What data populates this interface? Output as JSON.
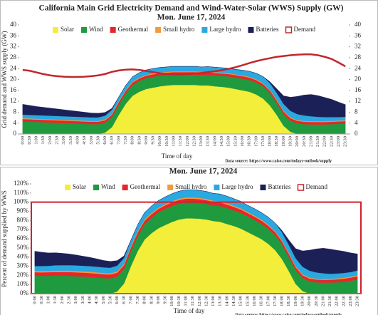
{
  "chart_data": [
    {
      "type": "area",
      "title": "California Main Grid Electricity Demand and Wind-Water-Solar (WWS) Supply (GW)",
      "subtitle": "Mon. June 17, 2024",
      "y_label": "Grid demand and WWS supply (GW)",
      "x_label": "Time of day",
      "source": "Data source: https://www.caiso.com/todays-outlook/supply",
      "categories": [
        "0:00",
        "0:30",
        "1:00",
        "1:30",
        "2:00",
        "2:30",
        "3:00",
        "3:30",
        "4:00",
        "4:30",
        "5:00",
        "5:30",
        "6:00",
        "6:30",
        "7:00",
        "7:30",
        "8:00",
        "8:30",
        "9:00",
        "9:30",
        "10:00",
        "10:30",
        "11:00",
        "11:30",
        "12:00",
        "12:30",
        "13:00",
        "13:30",
        "14:00",
        "14:30",
        "15:00",
        "15:30",
        "16:00",
        "16:30",
        "17:00",
        "17:30",
        "18:00",
        "18:30",
        "19:00",
        "19:30",
        "20:00",
        "20:30",
        "21:00",
        "21:30",
        "22:00",
        "22:30",
        "23:00",
        "23:30"
      ],
      "ylim": [
        0,
        40
      ],
      "yticks": [
        0,
        4,
        8,
        12,
        16,
        20,
        24,
        28,
        32,
        36,
        40
      ],
      "y2lim": [
        0,
        40
      ],
      "y2ticks": [
        0,
        4,
        8,
        12,
        16,
        20,
        24,
        28,
        32,
        36,
        40
      ],
      "series": [
        {
          "name": "Solar",
          "color": "#f2ee3a",
          "kind": "area",
          "values": [
            0,
            0,
            0,
            0,
            0,
            0,
            0,
            0,
            0,
            0,
            0,
            0,
            0.5,
            2.5,
            7,
            11,
            14,
            15.5,
            16.5,
            17,
            17.5,
            17.8,
            18,
            18,
            18,
            18,
            17.8,
            17.8,
            17.5,
            17.3,
            17,
            16.5,
            16,
            15.5,
            14.5,
            13,
            10.5,
            7,
            3,
            0.8,
            0,
            0,
            0,
            0,
            0,
            0,
            0,
            0
          ]
        },
        {
          "name": "Wind",
          "color": "#1f9a3e",
          "kind": "area",
          "values": [
            4.6,
            4.5,
            4.4,
            4.3,
            4.2,
            4.1,
            4,
            3.9,
            3.8,
            3.7,
            3.6,
            3.6,
            3.6,
            3.7,
            3.8,
            3.9,
            4,
            4,
            4,
            4,
            3.9,
            3.8,
            3.8,
            3.8,
            3.8,
            3.8,
            3.8,
            3.9,
            4,
            4,
            4.1,
            4.2,
            4.3,
            4.3,
            4.4,
            4.5,
            4.5,
            4.4,
            4.3,
            4.1,
            3.9,
            3.6,
            3.5,
            3.5,
            3.5,
            3.6,
            3.7,
            3.8
          ]
        },
        {
          "name": "Geothermal",
          "color": "#e6262b",
          "kind": "area",
          "values": [
            0.9,
            0.9,
            0.9,
            0.9,
            0.9,
            0.9,
            0.9,
            0.9,
            0.9,
            0.9,
            0.9,
            0.9,
            0.9,
            0.9,
            0.9,
            0.9,
            0.9,
            0.9,
            0.9,
            0.9,
            0.9,
            0.9,
            0.9,
            0.9,
            0.9,
            0.9,
            0.9,
            0.9,
            0.9,
            0.9,
            0.9,
            0.9,
            0.9,
            0.9,
            0.9,
            0.9,
            0.9,
            0.9,
            0.9,
            0.9,
            0.9,
            0.9,
            0.9,
            0.9,
            0.9,
            0.9,
            0.9,
            0.9
          ]
        },
        {
          "name": "Small hydro",
          "color": "#f39a3b",
          "kind": "area",
          "values": [
            0.3,
            0.3,
            0.3,
            0.3,
            0.3,
            0.3,
            0.3,
            0.3,
            0.3,
            0.3,
            0.3,
            0.3,
            0.3,
            0.3,
            0.3,
            0.3,
            0.3,
            0.3,
            0.3,
            0.3,
            0.3,
            0.3,
            0.3,
            0.3,
            0.3,
            0.3,
            0.3,
            0.3,
            0.3,
            0.3,
            0.3,
            0.3,
            0.3,
            0.3,
            0.3,
            0.3,
            0.3,
            0.3,
            0.3,
            0.3,
            0.3,
            0.3,
            0.3,
            0.3,
            0.3,
            0.3,
            0.3,
            0.3
          ]
        },
        {
          "name": "Large hydro",
          "color": "#2aa8e0",
          "kind": "area",
          "values": [
            1.3,
            1.3,
            1.3,
            1.3,
            1.3,
            1.3,
            1.3,
            1.3,
            1.3,
            1.3,
            1.3,
            1.3,
            1.4,
            1.5,
            1.6,
            1.7,
            1.8,
            1.8,
            1.8,
            1.8,
            1.8,
            1.8,
            1.8,
            1.8,
            1.8,
            1.8,
            1.8,
            1.8,
            1.8,
            1.8,
            1.8,
            1.8,
            1.9,
            2,
            2.2,
            2.4,
            2.5,
            2.5,
            2.5,
            2.4,
            2.2,
            2,
            1.8,
            1.6,
            1.5,
            1.4,
            1.3,
            1.3
          ]
        },
        {
          "name": "Batteries",
          "color": "#1b2157",
          "kind": "area",
          "values": [
            3.8,
            3.5,
            3.2,
            3,
            2.8,
            2.6,
            2.4,
            2.2,
            2,
            1.8,
            1.6,
            1.5,
            1.2,
            0.5,
            0,
            0,
            0,
            0,
            0,
            0,
            0,
            0,
            0,
            0,
            0,
            0,
            0,
            0,
            0,
            0,
            0,
            0,
            0,
            0,
            0,
            0,
            0.5,
            1.5,
            3,
            5,
            6.5,
            7.5,
            8,
            7.8,
            7.2,
            6.5,
            5.5,
            4.5
          ]
        },
        {
          "name": "Demand",
          "color": "#c0272d",
          "kind": "line",
          "values": [
            23.5,
            23.2,
            22.6,
            22,
            21.5,
            21.2,
            21,
            20.9,
            20.9,
            21,
            21.2,
            21.5,
            22,
            22.8,
            23.3,
            23.6,
            23.7,
            23.5,
            23.1,
            22.7,
            22.3,
            22,
            21.9,
            21.9,
            22,
            22.2,
            22.4,
            22.7,
            23,
            23.4,
            23.9,
            24.5,
            25.2,
            26,
            26.7,
            27.3,
            27.8,
            28.3,
            28.6,
            28.9,
            29.1,
            29.2,
            29.2,
            28.9,
            28.3,
            27.5,
            26.2,
            24.8
          ]
        }
      ]
    },
    {
      "type": "area",
      "subtitle": "Mon. June 17, 2024",
      "y_label": "Percent of demand supplied by WWS",
      "x_label": "Time of day",
      "source": "Data source: https://www.caiso.com/todays-outlook/supply",
      "categories": [
        "0:00",
        "0:30",
        "1:00",
        "1:30",
        "2:00",
        "2:30",
        "3:00",
        "3:30",
        "4:00",
        "4:30",
        "5:00",
        "5:30",
        "6:00",
        "6:30",
        "7:00",
        "7:30",
        "8:00",
        "8:30",
        "9:00",
        "9:30",
        "10:00",
        "10:30",
        "11:00",
        "11:30",
        "12:00",
        "12:30",
        "13:00",
        "13:30",
        "14:00",
        "14:30",
        "15:00",
        "15:30",
        "16:00",
        "16:30",
        "17:00",
        "17:30",
        "18:00",
        "18:30",
        "19:00",
        "19:30",
        "20:00",
        "20:30",
        "21:00",
        "21:30",
        "22:00",
        "22:30",
        "23:00",
        "23:30"
      ],
      "ylim": [
        0,
        120
      ],
      "yticks": [
        {
          "value": 0,
          "label": "0%"
        },
        {
          "value": 10,
          "label": "10%"
        },
        {
          "value": 20,
          "label": "20%"
        },
        {
          "value": 30,
          "label": "30%"
        },
        {
          "value": 40,
          "label": "40%"
        },
        {
          "value": 50,
          "label": "50%"
        },
        {
          "value": 60,
          "label": "60%"
        },
        {
          "value": 70,
          "label": "70%"
        },
        {
          "value": 80,
          "label": "80%"
        },
        {
          "value": 90,
          "label": "90%"
        },
        {
          "value": 100,
          "label": "100%"
        },
        {
          "value": 110,
          "label": "110%"
        },
        {
          "value": 120,
          "label": "120%"
        }
      ],
      "series": [
        {
          "name": "Solar",
          "color": "#f2ee3a",
          "kind": "area",
          "values": [
            0,
            0,
            0,
            0,
            0,
            0,
            0,
            0,
            0,
            0,
            0,
            0,
            2.3,
            11,
            30,
            46.6,
            59.1,
            66,
            71.4,
            75,
            78.4,
            81,
            82.3,
            82.3,
            81.9,
            81,
            79.4,
            78.5,
            76.1,
            73.9,
            71.1,
            67.3,
            63.5,
            59.7,
            54.4,
            47.6,
            37.8,
            24.7,
            10.5,
            2.8,
            0,
            0,
            0,
            0,
            0,
            0,
            0,
            0
          ]
        },
        {
          "name": "Wind",
          "color": "#1f9a3e",
          "kind": "area",
          "values": [
            19.6,
            19.4,
            19.4,
            19.6,
            19.5,
            19.4,
            19,
            18.6,
            18.2,
            17.6,
            17,
            16.7,
            16.4,
            16.2,
            16.3,
            16.5,
            16.9,
            17,
            17.3,
            17.6,
            17.5,
            17.3,
            17.4,
            17.4,
            17.3,
            17.1,
            16.9,
            17.2,
            17.4,
            17.1,
            17.1,
            17.1,
            17.1,
            16.6,
            16.5,
            16.5,
            16.2,
            15.5,
            15.1,
            14.2,
            13.4,
            12.3,
            12,
            12.1,
            12.4,
            13.1,
            14.1,
            15.3
          ]
        },
        {
          "name": "Geothermal",
          "color": "#e6262b",
          "kind": "area",
          "values": [
            3.8,
            3.9,
            4,
            4.1,
            4.2,
            4.2,
            4.3,
            4.3,
            4.3,
            4.3,
            4.2,
            4.2,
            4.1,
            4,
            3.9,
            3.8,
            3.8,
            3.8,
            3.9,
            4,
            4,
            4.1,
            4.1,
            4.1,
            4.1,
            4.1,
            4,
            4,
            3.9,
            3.8,
            3.8,
            3.7,
            3.6,
            3.5,
            3.4,
            3.3,
            3.2,
            3.2,
            3.2,
            3.1,
            3.1,
            3.1,
            3.1,
            3.1,
            3.2,
            3.3,
            3.4,
            3.6
          ]
        },
        {
          "name": "Small hydro",
          "color": "#f39a3b",
          "kind": "area",
          "values": [
            1.3,
            1.3,
            1.3,
            1.4,
            1.4,
            1.4,
            1.4,
            1.4,
            1.4,
            1.4,
            1.4,
            1.4,
            1.4,
            1.3,
            1.3,
            1.3,
            1.3,
            1.3,
            1.3,
            1.3,
            1.3,
            1.4,
            1.4,
            1.4,
            1.4,
            1.4,
            1.3,
            1.3,
            1.3,
            1.3,
            1.3,
            1.2,
            1.2,
            1.2,
            1.1,
            1.1,
            1.1,
            1.1,
            1.1,
            1,
            1,
            1,
            1,
            1,
            1.1,
            1.1,
            1.1,
            1.2
          ]
        },
        {
          "name": "Large hydro",
          "color": "#2aa8e0",
          "kind": "area",
          "values": [
            5.5,
            5.6,
            5.7,
            5.9,
            6,
            6.1,
            6.2,
            6.2,
            6.2,
            6.2,
            6.1,
            6,
            6.4,
            6.6,
            6.9,
            7.2,
            7.6,
            7.7,
            7.8,
            7.9,
            8.1,
            8.2,
            8.2,
            8.2,
            8.2,
            8.1,
            8,
            7.9,
            7.8,
            7.7,
            7.5,
            7.3,
            7.5,
            7.7,
            8.3,
            8.8,
            9,
            8.8,
            8.8,
            8.3,
            7.6,
            6.8,
            6.2,
            5.5,
            5.3,
            5.1,
            5,
            5.2
          ]
        },
        {
          "name": "Batteries",
          "color": "#1b2157",
          "kind": "area",
          "values": [
            16.2,
            15.1,
            14.1,
            13.7,
            13,
            12.3,
            11.4,
            10.5,
            9.6,
            8.6,
            7.6,
            7,
            5.5,
            2.2,
            0,
            0,
            0,
            0,
            0,
            0,
            0,
            0,
            0,
            0,
            0,
            0,
            0,
            0,
            0,
            0,
            0,
            0,
            0,
            0,
            0,
            0,
            1.8,
            5.3,
            10.5,
            17.3,
            22.4,
            25.7,
            27.4,
            27,
            25.4,
            23.7,
            21,
            18.1
          ]
        },
        {
          "name": "Demand",
          "color": "#d0222a",
          "kind": "box",
          "values": [
            100,
            100,
            100,
            100,
            100,
            100,
            100,
            100,
            100,
            100,
            100,
            100,
            100,
            100,
            100,
            100,
            100,
            100,
            100,
            100,
            100,
            100,
            100,
            100,
            100,
            100,
            100,
            100,
            100,
            100,
            100,
            100,
            100,
            100,
            100,
            100,
            100,
            100,
            100,
            100,
            100,
            100,
            100,
            100,
            100,
            100,
            100,
            100
          ]
        }
      ]
    }
  ]
}
